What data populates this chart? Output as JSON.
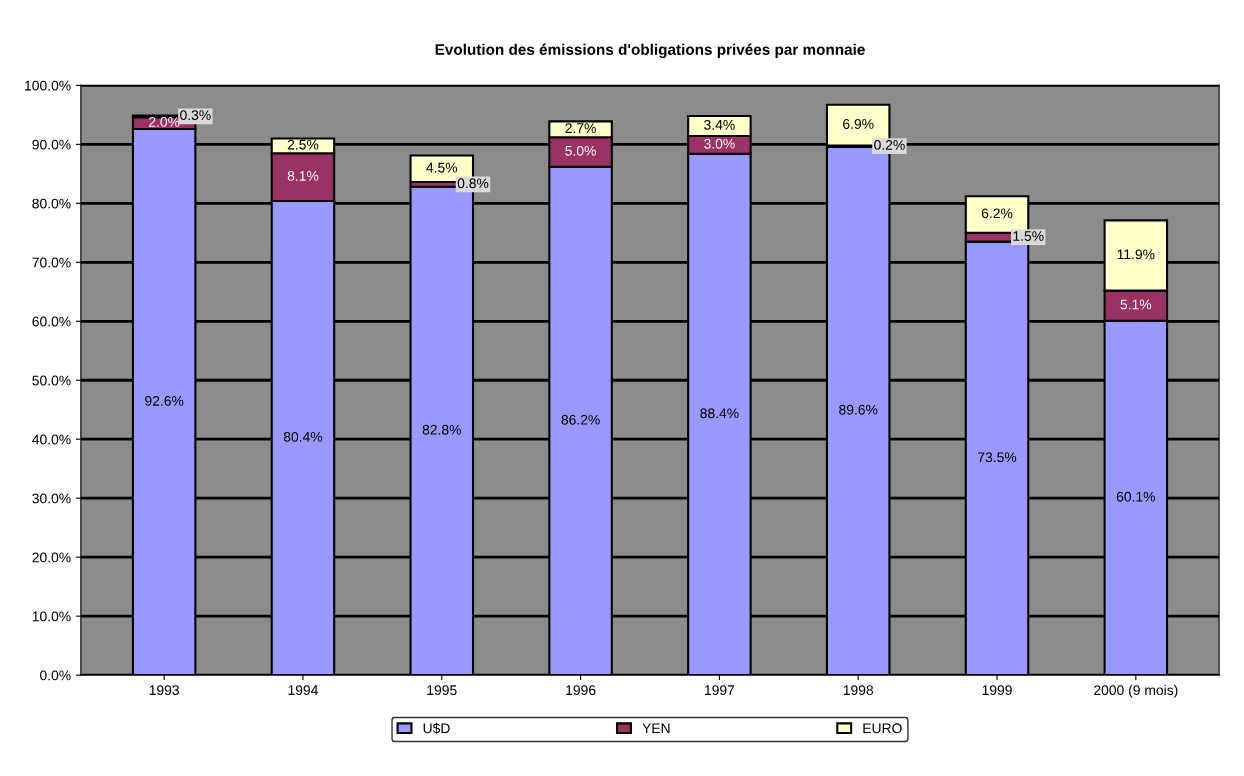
{
  "chart_data": {
    "type": "bar",
    "stacked": true,
    "title": "Evolution des émissions d'obligations privées par monnaie",
    "categories": [
      "1993",
      "1994",
      "1995",
      "1996",
      "1997",
      "1998",
      "1999",
      "2000 (9 mois)"
    ],
    "series": [
      {
        "name": "U$D",
        "color": "#9999ff",
        "values": [
          92.6,
          80.4,
          82.8,
          86.2,
          88.4,
          89.6,
          73.5,
          60.1
        ],
        "value_labels": [
          "92.6%",
          "80.4%",
          "82.8%",
          "86.2%",
          "88.4%",
          "89.6%",
          "73.5%",
          "60.1%"
        ]
      },
      {
        "name": "YEN",
        "color": "#993366",
        "values": [
          2.0,
          8.1,
          0.8,
          5.0,
          3.0,
          0.2,
          1.5,
          5.1
        ],
        "value_labels": [
          "2.0%",
          "8.1%",
          "0.8%",
          "5.0%",
          "3.0%",
          "0.2%",
          "1.5%",
          "5.1%"
        ]
      },
      {
        "name": "EURO",
        "color": "#ffffcc",
        "values": [
          0.3,
          2.5,
          4.5,
          2.7,
          3.4,
          6.9,
          6.2,
          11.9
        ],
        "value_labels": [
          "0.3%",
          "2.5%",
          "4.5%",
          "2.7%",
          "3.4%",
          "6.9%",
          "6.2%",
          "11.9%"
        ]
      }
    ],
    "ylim": [
      0,
      100
    ],
    "yticks": [
      {
        "value": 0,
        "label": "0.0%"
      },
      {
        "value": 10,
        "label": "10.0%"
      },
      {
        "value": 20,
        "label": "20.0%"
      },
      {
        "value": 30,
        "label": "30.0%"
      },
      {
        "value": 40,
        "label": "40.0%"
      },
      {
        "value": 50,
        "label": "50.0%"
      },
      {
        "value": 60,
        "label": "60.0%"
      },
      {
        "value": 70,
        "label": "70.0%"
      },
      {
        "value": 80,
        "label": "80.0%"
      },
      {
        "value": 90,
        "label": "90.0%"
      },
      {
        "value": 100,
        "label": "100.0%"
      }
    ],
    "grid": "y",
    "legend": "bottom"
  }
}
